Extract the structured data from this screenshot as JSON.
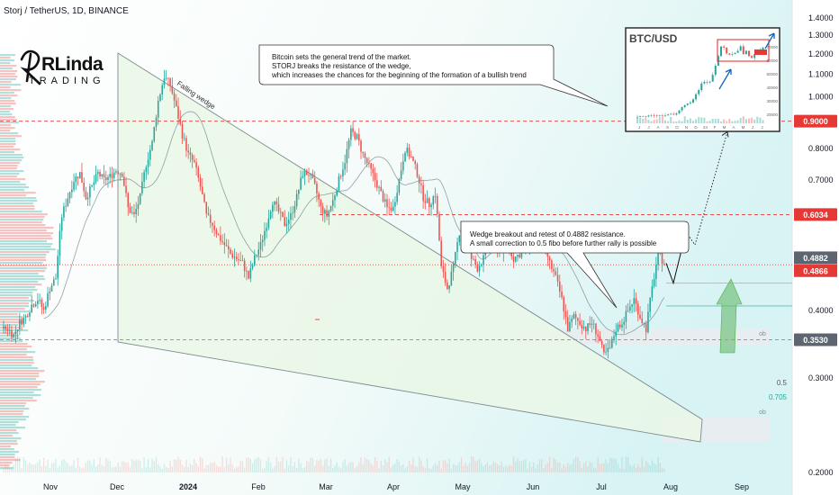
{
  "header": {
    "symbol_title": "Storj / TetherUS, 1D, BINANCE"
  },
  "logo": {
    "name": "RLinda",
    "subtitle": "TRADING"
  },
  "colors": {
    "up": "#26a69a",
    "down": "#ef5350",
    "red_level": "#e53935",
    "wedge_fill": "#e9f7e6",
    "wedge_line": "#7d8a90",
    "zone_fill": "#e9ecef",
    "bull_arrow": "#66bb6a"
  },
  "notes": {
    "bitcoin": [
      "Bitcoin sets the general trend of the market.",
      "STORJ breaks the resistance of the wedge,",
      "which increases the chances for the beginning of the formation of a bullish trend"
    ],
    "wedge": [
      "Wedge breakout and retest of 0.4882 resistance.",
      "A small correction to 0.5 fibo before further rally is possible"
    ]
  },
  "annotations": {
    "falling_wedge": "Falling wedge",
    "fib_05": "0.5",
    "fib_0705": "0.705",
    "ob_upper": "ob",
    "ob_lower": "ob"
  },
  "inset": {
    "title": "BTC/USD",
    "y_ticks": [
      "70000",
      "60000",
      "50000",
      "40000",
      "30000",
      "20000"
    ],
    "x_ticks": [
      "J",
      "J",
      "A",
      "S",
      "O",
      "N",
      "D",
      "24",
      "F",
      "M",
      "A",
      "M",
      "J",
      "J"
    ],
    "close": [
      16.5,
      17,
      17,
      16.8,
      17.5,
      17.8,
      17.6,
      17.3,
      17.5,
      17.4,
      17.6,
      18.3,
      18.8,
      18.2,
      19.2,
      21.5,
      24,
      25.6,
      26.8,
      27.5,
      30,
      34,
      37.2,
      42.3,
      43.5,
      43,
      43.7,
      49,
      56,
      63.5,
      70.8,
      70,
      65.5,
      64.5,
      65,
      66,
      67.5,
      71,
      65,
      67.5,
      63.5,
      62,
      65,
      67.5,
      68.5,
      70
    ]
  },
  "chart_data": {
    "type": "candlestick",
    "title": "Storj / TetherUS, 1D, BINANCE",
    "y_axis": {
      "scale": "log",
      "ticks": [
        1.4,
        1.3,
        1.2,
        1.1,
        1.0,
        0.9,
        0.8,
        0.7,
        0.6,
        0.5,
        0.4,
        0.3,
        0.2
      ]
    },
    "x_axis": {
      "tick_labels": [
        "Nov",
        "Dec",
        "2024",
        "Feb",
        "Mar",
        "Apr",
        "May",
        "Jun",
        "Jul",
        "Aug",
        "Sep"
      ]
    },
    "price_levels": [
      {
        "label": "0.9000",
        "value": 0.9
      },
      {
        "label": "0.6034",
        "value": 0.6034
      },
      {
        "label": "0.4882",
        "value": 0.4882
      },
      {
        "label": "0.4866",
        "value": 0.4866
      },
      {
        "label": "0.3530",
        "value": 0.353
      }
    ],
    "fibonacci": [
      {
        "label": "0.5",
        "value": 0.45
      },
      {
        "label": "0.705",
        "value": 0.408
      }
    ],
    "close_path": [
      0.37,
      0.37,
      0.36,
      0.38,
      0.39,
      0.41,
      0.42,
      0.4,
      0.44,
      0.46,
      0.6,
      0.65,
      0.7,
      0.72,
      0.65,
      0.68,
      0.72,
      0.7,
      0.71,
      0.73,
      0.72,
      0.62,
      0.6,
      0.65,
      0.75,
      0.82,
      0.98,
      1.09,
      1.05,
      0.95,
      0.85,
      0.78,
      0.75,
      0.68,
      0.6,
      0.58,
      0.55,
      0.53,
      0.51,
      0.5,
      0.49,
      0.46,
      0.5,
      0.53,
      0.58,
      0.64,
      0.61,
      0.58,
      0.6,
      0.65,
      0.72,
      0.72,
      0.68,
      0.62,
      0.6,
      0.64,
      0.7,
      0.76,
      0.86,
      0.84,
      0.78,
      0.74,
      0.7,
      0.66,
      0.62,
      0.62,
      0.7,
      0.8,
      0.77,
      0.72,
      0.65,
      0.63,
      0.66,
      0.48,
      0.44,
      0.48,
      0.56,
      0.54,
      0.5,
      0.48,
      0.5,
      0.53,
      0.52,
      0.52,
      0.53,
      0.5,
      0.51,
      0.52,
      0.54,
      0.55,
      0.53,
      0.49,
      0.46,
      0.42,
      0.37,
      0.39,
      0.38,
      0.37,
      0.38,
      0.36,
      0.33,
      0.34,
      0.37,
      0.38,
      0.4,
      0.42,
      0.39,
      0.37,
      0.44,
      0.51,
      0.49
    ],
    "projection": [
      0.49,
      0.45,
      0.56,
      0.53,
      0.86
    ]
  }
}
